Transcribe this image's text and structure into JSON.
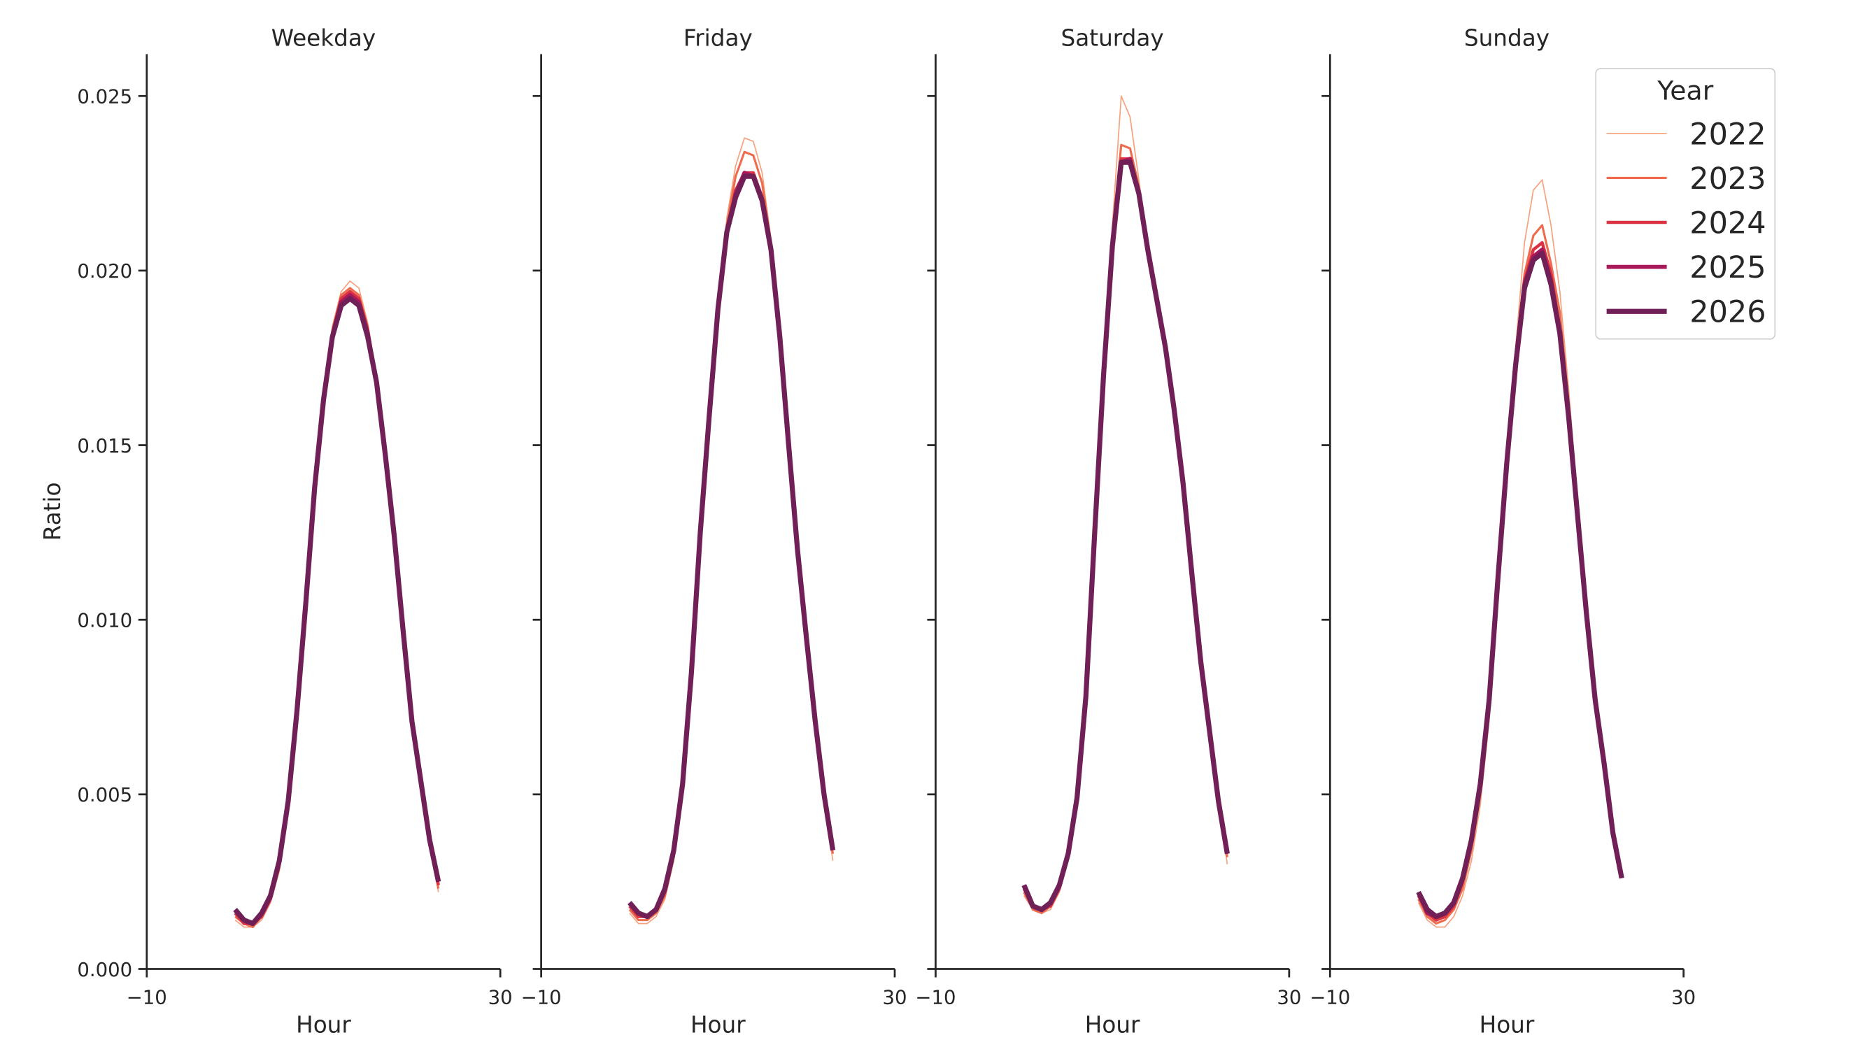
{
  "chart_data": [
    {
      "type": "line",
      "title": "Weekday",
      "xlabel": "Hour",
      "ylabel": "Ratio",
      "x": [
        0,
        1,
        2,
        3,
        4,
        5,
        6,
        7,
        8,
        9,
        10,
        11,
        12,
        13,
        14,
        15,
        16,
        17,
        18,
        19,
        20,
        21,
        22,
        23
      ],
      "xlim": [
        -10,
        30
      ],
      "xticks": [
        {
          "value": -10,
          "label": "−10"
        },
        30
      ],
      "ylim": [
        0,
        0.0262
      ],
      "yticks": [
        {
          "value": 0,
          "label": "0.000"
        },
        {
          "value": 0.005,
          "label": "0.005"
        },
        {
          "value": 0.01,
          "label": "0.010"
        },
        {
          "value": 0.015,
          "label": "0.015"
        },
        {
          "value": 0.02,
          "label": "0.020"
        },
        {
          "value": 0.025,
          "label": "0.025"
        }
      ],
      "series": [
        {
          "color": "#f5a37f",
          "values": [
            0.0014,
            0.0012,
            0.0012,
            0.0014,
            0.0019,
            0.0028,
            0.0045,
            0.0072,
            0.0104,
            0.0138,
            0.0164,
            0.0184,
            0.0194,
            0.0197,
            0.0195,
            0.0185,
            0.0169,
            0.0147,
            0.0124,
            0.0097,
            0.0071,
            0.0054,
            0.0036,
            0.0022
          ]
        },
        {
          "color": "#ee6b4e",
          "values": [
            0.0015,
            0.0013,
            0.0012,
            0.0015,
            0.002,
            0.0029,
            0.0046,
            0.0072,
            0.0104,
            0.0138,
            0.0164,
            0.0183,
            0.0193,
            0.0195,
            0.0193,
            0.0184,
            0.0169,
            0.0147,
            0.0124,
            0.0097,
            0.0071,
            0.0054,
            0.0036,
            0.0023
          ]
        },
        {
          "color": "#dc3343",
          "values": [
            0.0016,
            0.0013,
            0.0013,
            0.0015,
            0.002,
            0.003,
            0.0047,
            0.0073,
            0.0105,
            0.0138,
            0.0163,
            0.0182,
            0.0192,
            0.0194,
            0.0192,
            0.0183,
            0.0168,
            0.0147,
            0.0124,
            0.0097,
            0.0071,
            0.0054,
            0.0037,
            0.0024
          ]
        },
        {
          "color": "#a8185a",
          "values": [
            0.0017,
            0.0014,
            0.0013,
            0.0016,
            0.0021,
            0.0031,
            0.0048,
            0.0074,
            0.0105,
            0.0138,
            0.0163,
            0.0181,
            0.0191,
            0.0193,
            0.0191,
            0.0182,
            0.0168,
            0.0147,
            0.0124,
            0.0097,
            0.0071,
            0.0054,
            0.0037,
            0.0025
          ]
        },
        {
          "color": "#701f57",
          "values": [
            0.0017,
            0.0014,
            0.0013,
            0.0016,
            0.0021,
            0.0031,
            0.0048,
            0.0074,
            0.0105,
            0.0138,
            0.0163,
            0.0181,
            0.019,
            0.0192,
            0.019,
            0.0181,
            0.0168,
            0.0147,
            0.0124,
            0.0097,
            0.0071,
            0.0054,
            0.0037,
            0.0025
          ]
        }
      ]
    },
    {
      "type": "line",
      "title": "Friday",
      "xlabel": "Hour",
      "x": [
        0,
        1,
        2,
        3,
        4,
        5,
        6,
        7,
        8,
        9,
        10,
        11,
        12,
        13,
        14,
        15,
        16,
        17,
        18,
        19,
        20,
        21,
        22,
        23
      ],
      "xlim": [
        -10,
        30
      ],
      "xticks": [
        {
          "value": -10,
          "label": "−10"
        },
        30
      ],
      "ylim": [
        0,
        0.0262
      ],
      "yticks": [
        0,
        0.005,
        0.01,
        0.015,
        0.02,
        0.025
      ],
      "series": [
        {
          "color": "#f5a37f",
          "values": [
            0.0016,
            0.0013,
            0.0013,
            0.0015,
            0.002,
            0.0031,
            0.005,
            0.0083,
            0.0125,
            0.016,
            0.0191,
            0.0215,
            0.023,
            0.0238,
            0.0237,
            0.0228,
            0.0209,
            0.0182,
            0.015,
            0.012,
            0.0095,
            0.0071,
            0.0048,
            0.0031
          ]
        },
        {
          "color": "#ee6b4e",
          "values": [
            0.0017,
            0.0014,
            0.0014,
            0.0016,
            0.0021,
            0.0032,
            0.0051,
            0.0084,
            0.0125,
            0.0159,
            0.019,
            0.0213,
            0.0227,
            0.0234,
            0.0233,
            0.0225,
            0.0208,
            0.0182,
            0.015,
            0.012,
            0.0095,
            0.0071,
            0.0049,
            0.0033
          ]
        },
        {
          "color": "#dc3343",
          "values": [
            0.0018,
            0.0015,
            0.0015,
            0.0017,
            0.0022,
            0.0033,
            0.0052,
            0.0085,
            0.0125,
            0.0158,
            0.0189,
            0.0211,
            0.0223,
            0.0228,
            0.0228,
            0.0221,
            0.0206,
            0.0181,
            0.015,
            0.012,
            0.0095,
            0.0071,
            0.005,
            0.0034
          ]
        },
        {
          "color": "#a8185a",
          "values": [
            0.0019,
            0.0016,
            0.0015,
            0.0017,
            0.0023,
            0.0034,
            0.0053,
            0.0085,
            0.0125,
            0.0158,
            0.0189,
            0.0211,
            0.0222,
            0.0228,
            0.0227,
            0.022,
            0.0206,
            0.0181,
            0.015,
            0.012,
            0.0095,
            0.0071,
            0.005,
            0.0034
          ]
        },
        {
          "color": "#701f57",
          "values": [
            0.0019,
            0.0016,
            0.0015,
            0.0017,
            0.0023,
            0.0034,
            0.0053,
            0.0085,
            0.0125,
            0.0158,
            0.0189,
            0.0211,
            0.0221,
            0.0227,
            0.0227,
            0.022,
            0.0206,
            0.0181,
            0.015,
            0.012,
            0.0095,
            0.0071,
            0.005,
            0.0034
          ]
        }
      ]
    },
    {
      "type": "line",
      "title": "Saturday",
      "xlabel": "Hour",
      "x": [
        0,
        1,
        2,
        3,
        4,
        5,
        6,
        7,
        8,
        9,
        10,
        11,
        12,
        13,
        14,
        15,
        16,
        17,
        18,
        19,
        20,
        21,
        22,
        23
      ],
      "xlim": [
        -10,
        30
      ],
      "xticks": [
        {
          "value": -10,
          "label": "−10"
        },
        30
      ],
      "ylim": [
        0,
        0.0262
      ],
      "yticks": [
        0,
        0.005,
        0.01,
        0.015,
        0.02,
        0.025
      ],
      "series": [
        {
          "color": "#f5a37f",
          "values": [
            0.0021,
            0.0017,
            0.0016,
            0.0017,
            0.0022,
            0.0031,
            0.0046,
            0.0076,
            0.0124,
            0.0172,
            0.0213,
            0.025,
            0.0244,
            0.0226,
            0.0207,
            0.0192,
            0.0178,
            0.016,
            0.0139,
            0.0113,
            0.0088,
            0.0068,
            0.0047,
            0.003
          ]
        },
        {
          "color": "#ee6b4e",
          "values": [
            0.0022,
            0.0017,
            0.0016,
            0.0018,
            0.0023,
            0.0032,
            0.0047,
            0.0077,
            0.0125,
            0.0171,
            0.021,
            0.0236,
            0.0235,
            0.0224,
            0.0206,
            0.0192,
            0.0178,
            0.016,
            0.0139,
            0.0113,
            0.0088,
            0.0068,
            0.0048,
            0.0032
          ]
        },
        {
          "color": "#dc3343",
          "values": [
            0.0023,
            0.0018,
            0.0017,
            0.0018,
            0.0023,
            0.0032,
            0.0048,
            0.0078,
            0.0125,
            0.017,
            0.0207,
            0.0232,
            0.0232,
            0.0223,
            0.0206,
            0.0192,
            0.0178,
            0.016,
            0.0139,
            0.0113,
            0.0088,
            0.0068,
            0.0048,
            0.0033
          ]
        },
        {
          "color": "#a8185a",
          "values": [
            0.0024,
            0.0018,
            0.0017,
            0.0019,
            0.0024,
            0.0033,
            0.0049,
            0.0078,
            0.0125,
            0.017,
            0.0207,
            0.0231,
            0.0232,
            0.0222,
            0.0206,
            0.0192,
            0.0178,
            0.016,
            0.0139,
            0.0113,
            0.0088,
            0.0068,
            0.0048,
            0.0033
          ]
        },
        {
          "color": "#701f57",
          "values": [
            0.0024,
            0.0018,
            0.0017,
            0.0019,
            0.0024,
            0.0033,
            0.0049,
            0.0078,
            0.0125,
            0.017,
            0.0207,
            0.0231,
            0.0231,
            0.0222,
            0.0206,
            0.0192,
            0.0178,
            0.016,
            0.0139,
            0.0113,
            0.0088,
            0.0068,
            0.0048,
            0.0033
          ]
        }
      ]
    },
    {
      "type": "line",
      "title": "Sunday",
      "xlabel": "Hour",
      "x": [
        0,
        1,
        2,
        3,
        4,
        5,
        6,
        7,
        8,
        9,
        10,
        11,
        12,
        13,
        14,
        15,
        16,
        17,
        18,
        19,
        20,
        21,
        22,
        23
      ],
      "xlim": [
        -10,
        30
      ],
      "xticks": [
        {
          "value": -10,
          "label": "−10"
        },
        30
      ],
      "ylim": [
        0,
        0.0262
      ],
      "yticks": [
        0,
        0.005,
        0.01,
        0.015,
        0.02,
        0.025
      ],
      "legend_title": "Year",
      "legend": "upper right",
      "series": [
        {
          "name": "2022",
          "color": "#f5a37f",
          "values": [
            0.0019,
            0.0014,
            0.0012,
            0.0012,
            0.0015,
            0.0021,
            0.0031,
            0.0047,
            0.0071,
            0.0108,
            0.0145,
            0.0178,
            0.0208,
            0.0223,
            0.0226,
            0.0213,
            0.0194,
            0.0166,
            0.0134,
            0.0103,
            0.0077,
            0.0059,
            0.0039,
            0.0026
          ]
        },
        {
          "name": "2023",
          "color": "#ee6b4e",
          "values": [
            0.002,
            0.0015,
            0.0013,
            0.0014,
            0.0017,
            0.0023,
            0.0034,
            0.005,
            0.0074,
            0.011,
            0.0145,
            0.0176,
            0.0199,
            0.021,
            0.0213,
            0.0202,
            0.0188,
            0.0162,
            0.0132,
            0.0102,
            0.0077,
            0.0059,
            0.0039,
            0.0026
          ]
        },
        {
          "name": "2024",
          "color": "#dc3343",
          "values": [
            0.0021,
            0.0016,
            0.0014,
            0.0015,
            0.0018,
            0.0025,
            0.0036,
            0.0052,
            0.0076,
            0.0111,
            0.0145,
            0.0175,
            0.0197,
            0.0206,
            0.0208,
            0.0199,
            0.0183,
            0.0159,
            0.013,
            0.0102,
            0.0077,
            0.0059,
            0.0039,
            0.0026
          ]
        },
        {
          "name": "2025",
          "color": "#a8185a",
          "values": [
            0.0022,
            0.0016,
            0.0015,
            0.0016,
            0.0019,
            0.0026,
            0.0037,
            0.0053,
            0.0077,
            0.0112,
            0.0145,
            0.0174,
            0.0196,
            0.0204,
            0.0206,
            0.0197,
            0.0182,
            0.0158,
            0.013,
            0.0102,
            0.0077,
            0.0059,
            0.0039,
            0.0026
          ]
        },
        {
          "name": "2026",
          "color": "#701f57",
          "values": [
            0.0022,
            0.0017,
            0.0015,
            0.0016,
            0.0019,
            0.0026,
            0.0037,
            0.0053,
            0.0077,
            0.0112,
            0.0145,
            0.0173,
            0.0195,
            0.0203,
            0.0205,
            0.0196,
            0.0182,
            0.0158,
            0.013,
            0.0102,
            0.0077,
            0.0059,
            0.0039,
            0.0026
          ]
        }
      ]
    }
  ]
}
